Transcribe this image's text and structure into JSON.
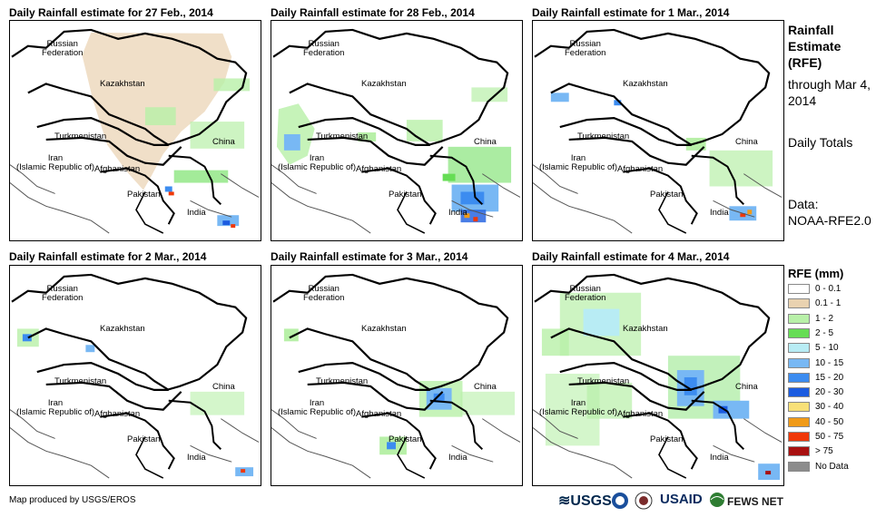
{
  "panels": [
    {
      "title": "Daily Rainfall estimate for 27 Feb., 2014"
    },
    {
      "title": "Daily Rainfall estimate for 28 Feb., 2014"
    },
    {
      "title": "Daily Rainfall estimate for 1 Mar., 2014"
    },
    {
      "title": "Daily Rainfall estimate for 2 Mar., 2014"
    },
    {
      "title": "Daily Rainfall estimate for 3 Mar., 2014"
    },
    {
      "title": "Daily Rainfall estimate for 4 Mar., 2014"
    }
  ],
  "map_labels": {
    "russia": "Russian\nFederation",
    "kazakhstan": "Kazakhstan",
    "turkmenistan": "Turkmenistan",
    "iran": "Iran\n(Islamic Republic of)",
    "afghanistan": "Afghanistan",
    "pakistan": "Pakistan",
    "china": "China",
    "india": "India"
  },
  "side_info": {
    "title": "Rainfall Estimate (RFE)",
    "through": "through Mar 4, 2014",
    "totals": "Daily Totals",
    "data_label": "Data:",
    "data_source": "NOAA-RFE2.0"
  },
  "legend": {
    "title": "RFE (mm)",
    "items": [
      {
        "label": "0 - 0.1",
        "color": "#ffffff"
      },
      {
        "label": "0.1 - 1",
        "color": "#e9d2b0"
      },
      {
        "label": "1 - 2",
        "color": "#b8f0a8"
      },
      {
        "label": "2 - 5",
        "color": "#66dd55"
      },
      {
        "label": "5 - 10",
        "color": "#b8ecf4"
      },
      {
        "label": "10 - 15",
        "color": "#78b8f4"
      },
      {
        "label": "15 - 20",
        "color": "#3c8cf0"
      },
      {
        "label": "20 - 30",
        "color": "#1c5ce0"
      },
      {
        "label": "30 - 40",
        "color": "#f8e078"
      },
      {
        "label": "40 - 50",
        "color": "#f09a18"
      },
      {
        "label": "50 - 75",
        "color": "#f03808"
      },
      {
        "label": "> 75",
        "color": "#a81010"
      },
      {
        "label": "No Data",
        "color": "#8c8c8c"
      }
    ]
  },
  "footer": {
    "credit": "Map produced by USGS/EROS"
  },
  "logos": {
    "usgs": "USGS",
    "usaid": "USAID",
    "fewsnet": "FEWS NET",
    "noaa": "noaa-seal-icon",
    "doi": "usda-seal-icon",
    "globe": "fewsnet-globe-icon"
  }
}
